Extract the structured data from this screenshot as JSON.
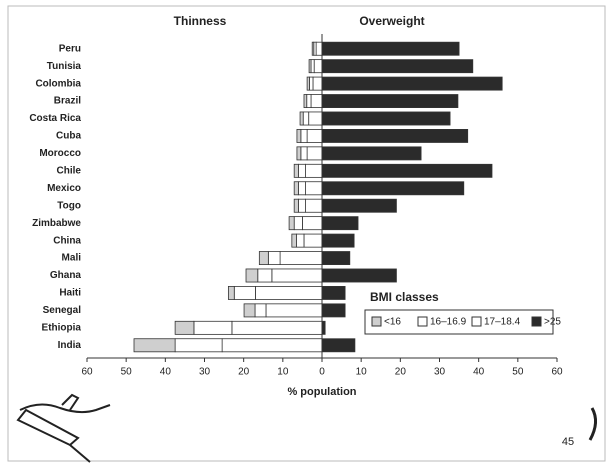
{
  "chart_data": {
    "type": "bar",
    "orientation": "horizontal",
    "stacked": true,
    "annotations": [
      "Thinness",
      "Overweight"
    ],
    "xlabel": "% population",
    "legend_title": "BMI classes",
    "page_number": "45",
    "categories": [
      "Peru",
      "Tunisia",
      "Colombia",
      "Brazil",
      "Costa Rica",
      "Cuba",
      "Morocco",
      "Chile",
      "Mexico",
      "Togo",
      "Zimbabwe",
      "China",
      "Mali",
      "Ghana",
      "Haiti",
      "Senegal",
      "Ethiopia",
      "India"
    ],
    "series": [
      {
        "name": "<16",
        "color": "#cfcfcf",
        "values": [
          -0.4,
          -0.5,
          -0.6,
          -0.7,
          -0.8,
          -1.0,
          -1.0,
          -1.1,
          -1.1,
          -1.1,
          -1.3,
          -1.2,
          -2.3,
          -3.0,
          -1.5,
          -2.8,
          -4.8,
          -10.5
        ]
      },
      {
        "name": "16–16.9",
        "color": "#ffffff",
        "values": [
          -0.6,
          -0.8,
          -0.9,
          -1.1,
          -1.4,
          -1.6,
          -1.6,
          -1.8,
          -1.8,
          -1.8,
          -2.1,
          -1.9,
          -3.0,
          -3.6,
          -5.4,
          -2.8,
          -9.7,
          -12
        ]
      },
      {
        "name": "17–18.4",
        "color": "#ffffff",
        "values": [
          -1.5,
          -2.0,
          -2.3,
          -2.8,
          -3.4,
          -3.8,
          -3.8,
          -4.2,
          -4.2,
          -4.2,
          -5.0,
          -4.6,
          -10.7,
          -12.8,
          -17,
          -14.3,
          -23,
          -25.5
        ]
      },
      {
        "name": ">25",
        "color": "#2b2b2b",
        "values": [
          35,
          38.5,
          46,
          34.7,
          32.7,
          37.2,
          25.3,
          43.4,
          36.2,
          19,
          9.2,
          8.2,
          7.1,
          19,
          5.9,
          5.9,
          0.8,
          8.4
        ]
      }
    ],
    "xlim": [
      -60,
      60
    ],
    "xticks": [
      {
        "value": -60,
        "label": "60"
      },
      {
        "value": -50,
        "label": "50"
      },
      {
        "value": -40,
        "label": "40"
      },
      {
        "value": -30,
        "label": "30"
      },
      {
        "value": -20,
        "label": "20"
      },
      {
        "value": -10,
        "label": "10"
      },
      0,
      10,
      20,
      30,
      40,
      50,
      60
    ]
  }
}
